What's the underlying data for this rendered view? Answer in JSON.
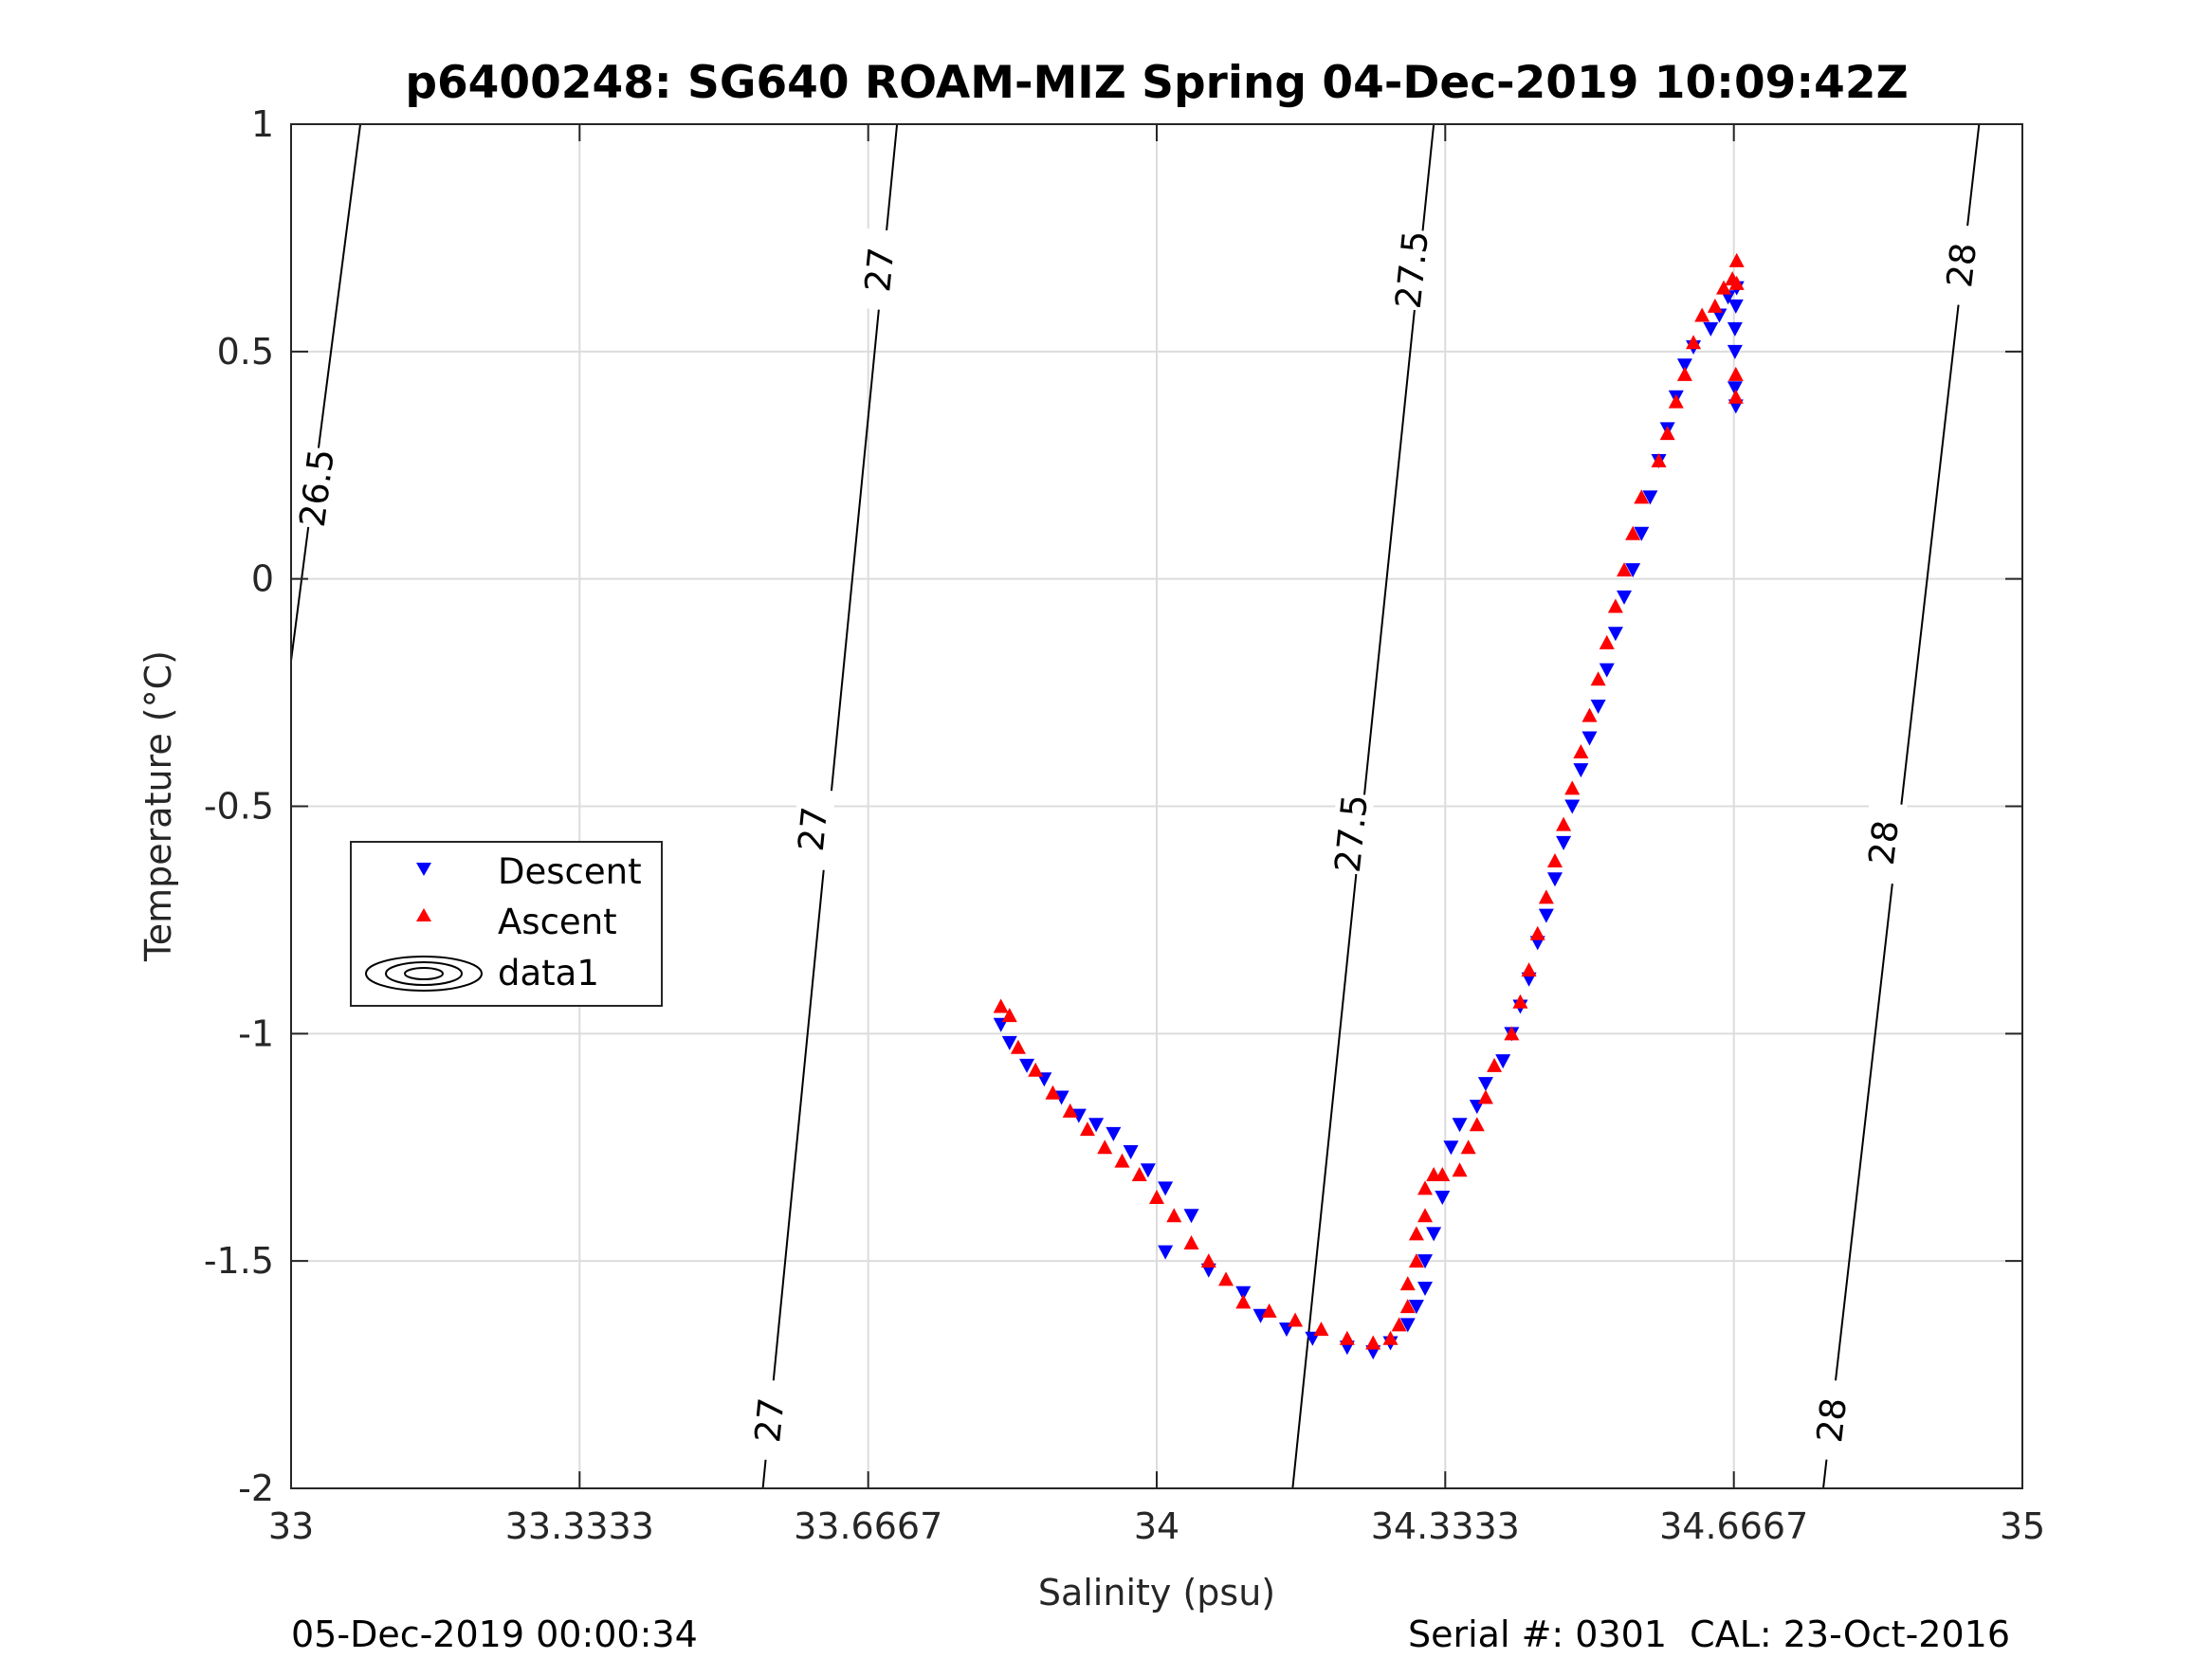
{
  "chart_data": {
    "type": "scatter",
    "title": "p6400248: SG640 ROAM-MIZ Spring 04-Dec-2019 10:09:42Z",
    "xlabel": "Salinity (psu)",
    "ylabel": "Temperature (°C)",
    "xlim": [
      33,
      35
    ],
    "ylim": [
      -2,
      1
    ],
    "xticks": [
      33,
      33.3333,
      33.6667,
      34,
      34.3333,
      34.6667,
      35
    ],
    "xtick_labels": [
      "33",
      "33.3333",
      "33.6667",
      "34",
      "34.3333",
      "34.6667",
      "35"
    ],
    "yticks": [
      -2,
      -1.5,
      -1,
      -0.5,
      0,
      0.5,
      1
    ],
    "ytick_labels": [
      "-2",
      "-1.5",
      "-1",
      "-0.5",
      "0",
      "0.5",
      "1"
    ],
    "grid": true,
    "legend_position": "left-middle",
    "footer_left": "05-Dec-2019 00:00:34",
    "footer_right": "Serial #: 0301  CAL: 23-Oct-2016",
    "series": [
      {
        "name": "Descent",
        "marker": "triangle-down",
        "color": "#0000ff",
        "points": [
          [
            33.82,
            -0.98
          ],
          [
            33.83,
            -1.02
          ],
          [
            33.85,
            -1.07
          ],
          [
            33.87,
            -1.1
          ],
          [
            33.89,
            -1.14
          ],
          [
            33.91,
            -1.18
          ],
          [
            33.93,
            -1.2
          ],
          [
            33.95,
            -1.22
          ],
          [
            33.97,
            -1.26
          ],
          [
            33.99,
            -1.3
          ],
          [
            34.01,
            -1.34
          ],
          [
            34.04,
            -1.4
          ],
          [
            34.01,
            -1.48
          ],
          [
            34.06,
            -1.52
          ],
          [
            34.1,
            -1.57
          ],
          [
            34.12,
            -1.62
          ],
          [
            34.15,
            -1.65
          ],
          [
            34.18,
            -1.67
          ],
          [
            34.22,
            -1.69
          ],
          [
            34.25,
            -1.7
          ],
          [
            34.27,
            -1.68
          ],
          [
            34.29,
            -1.64
          ],
          [
            34.3,
            -1.6
          ],
          [
            34.31,
            -1.56
          ],
          [
            34.31,
            -1.5
          ],
          [
            34.32,
            -1.44
          ],
          [
            34.33,
            -1.36
          ],
          [
            34.34,
            -1.25
          ],
          [
            34.35,
            -1.2
          ],
          [
            34.37,
            -1.16
          ],
          [
            34.38,
            -1.11
          ],
          [
            34.4,
            -1.06
          ],
          [
            34.41,
            -1.0
          ],
          [
            34.42,
            -0.94
          ],
          [
            34.43,
            -0.88
          ],
          [
            34.44,
            -0.8
          ],
          [
            34.45,
            -0.74
          ],
          [
            34.46,
            -0.66
          ],
          [
            34.47,
            -0.58
          ],
          [
            34.48,
            -0.5
          ],
          [
            34.49,
            -0.42
          ],
          [
            34.5,
            -0.35
          ],
          [
            34.51,
            -0.28
          ],
          [
            34.52,
            -0.2
          ],
          [
            34.53,
            -0.12
          ],
          [
            34.54,
            -0.04
          ],
          [
            34.55,
            0.02
          ],
          [
            34.56,
            0.1
          ],
          [
            34.57,
            0.18
          ],
          [
            34.58,
            0.26
          ],
          [
            34.59,
            0.33
          ],
          [
            34.6,
            0.4
          ],
          [
            34.61,
            0.47
          ],
          [
            34.62,
            0.51
          ],
          [
            34.64,
            0.55
          ],
          [
            34.65,
            0.58
          ],
          [
            34.66,
            0.62
          ],
          [
            34.67,
            0.64
          ],
          [
            34.668,
            0.5
          ],
          [
            34.668,
            0.42
          ],
          [
            34.669,
            0.38
          ],
          [
            34.668,
            0.55
          ],
          [
            34.669,
            0.6
          ]
        ]
      },
      {
        "name": "Ascent",
        "marker": "triangle-up",
        "color": "#ff0000",
        "points": [
          [
            33.82,
            -0.94
          ],
          [
            33.83,
            -0.96
          ],
          [
            33.84,
            -1.03
          ],
          [
            33.86,
            -1.08
          ],
          [
            33.88,
            -1.13
          ],
          [
            33.9,
            -1.17
          ],
          [
            33.92,
            -1.21
          ],
          [
            33.94,
            -1.25
          ],
          [
            33.96,
            -1.28
          ],
          [
            33.98,
            -1.31
          ],
          [
            34.0,
            -1.36
          ],
          [
            34.02,
            -1.4
          ],
          [
            34.04,
            -1.46
          ],
          [
            34.06,
            -1.5
          ],
          [
            34.08,
            -1.54
          ],
          [
            34.1,
            -1.59
          ],
          [
            34.13,
            -1.61
          ],
          [
            34.16,
            -1.63
          ],
          [
            34.19,
            -1.65
          ],
          [
            34.22,
            -1.67
          ],
          [
            34.25,
            -1.68
          ],
          [
            34.27,
            -1.67
          ],
          [
            34.28,
            -1.64
          ],
          [
            34.29,
            -1.6
          ],
          [
            34.29,
            -1.55
          ],
          [
            34.3,
            -1.5
          ],
          [
            34.3,
            -1.44
          ],
          [
            34.31,
            -1.4
          ],
          [
            34.31,
            -1.34
          ],
          [
            34.32,
            -1.31
          ],
          [
            34.33,
            -1.31
          ],
          [
            34.35,
            -1.3
          ],
          [
            34.36,
            -1.25
          ],
          [
            34.37,
            -1.2
          ],
          [
            34.38,
            -1.14
          ],
          [
            34.39,
            -1.07
          ],
          [
            34.41,
            -1.0
          ],
          [
            34.42,
            -0.93
          ],
          [
            34.43,
            -0.86
          ],
          [
            34.44,
            -0.78
          ],
          [
            34.45,
            -0.7
          ],
          [
            34.46,
            -0.62
          ],
          [
            34.47,
            -0.54
          ],
          [
            34.48,
            -0.46
          ],
          [
            34.49,
            -0.38
          ],
          [
            34.5,
            -0.3
          ],
          [
            34.51,
            -0.22
          ],
          [
            34.52,
            -0.14
          ],
          [
            34.53,
            -0.06
          ],
          [
            34.54,
            0.02
          ],
          [
            34.55,
            0.1
          ],
          [
            34.56,
            0.18
          ],
          [
            34.58,
            0.26
          ],
          [
            34.59,
            0.32
          ],
          [
            34.6,
            0.39
          ],
          [
            34.61,
            0.45
          ],
          [
            34.62,
            0.52
          ],
          [
            34.63,
            0.58
          ],
          [
            34.645,
            0.6
          ],
          [
            34.655,
            0.64
          ],
          [
            34.665,
            0.66
          ],
          [
            34.67,
            0.7
          ],
          [
            34.669,
            0.45
          ],
          [
            34.669,
            0.4
          ],
          [
            34.67,
            0.65
          ]
        ]
      }
    ],
    "density_contours": {
      "levels": [
        "26.5",
        "27",
        "27.5",
        "28"
      ],
      "lines": [
        {
          "level": "26.5",
          "points": [
            [
              33,
              -0.18
            ],
            [
              33.08,
              1.0
            ]
          ],
          "labels": [
            [
              33.03,
              0.2
            ]
          ]
        },
        {
          "level": "27",
          "points": [
            [
              33.545,
              -2.0
            ],
            [
              33.7,
              1.0
            ]
          ],
          "labels": [
            [
              33.553,
              -1.85
            ],
            [
              33.603,
              -0.55
            ],
            [
              33.68,
              0.68
            ]
          ]
        },
        {
          "level": "27.5",
          "points": [
            [
              34.157,
              -2.0
            ],
            [
              34.32,
              1.0
            ]
          ],
          "labels": [
            [
              34.225,
              -0.56
            ],
            [
              34.295,
              0.68
            ]
          ]
        },
        {
          "level": "28",
          "points": [
            [
              34.77,
              -2.0
            ],
            [
              34.95,
              1.0
            ]
          ],
          "labels": [
            [
              34.78,
              -1.85
            ],
            [
              34.84,
              -0.58
            ],
            [
              34.93,
              0.69
            ]
          ]
        }
      ]
    }
  },
  "legend": {
    "items": [
      {
        "label": "Descent"
      },
      {
        "label": "Ascent"
      },
      {
        "label": "data1"
      }
    ]
  }
}
